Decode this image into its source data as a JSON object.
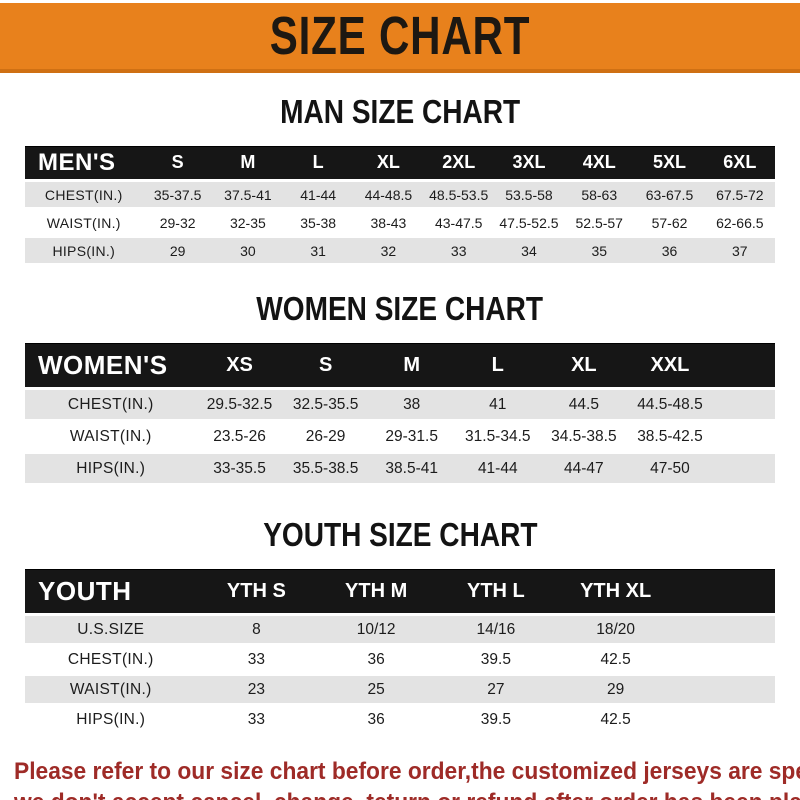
{
  "banner": {
    "title": "SIZE CHART"
  },
  "sections": [
    {
      "title": "MAN SIZE CHART",
      "header_label": "MEN'S",
      "columns": [
        "S",
        "M",
        "L",
        "XL",
        "2XL",
        "3XL",
        "4XL",
        "5XL",
        "6XL"
      ],
      "rows": [
        {
          "label": "CHEST(IN.)",
          "values": [
            "35-37.5",
            "37.5-41",
            "41-44",
            "44-48.5",
            "48.5-53.5",
            "53.5-58",
            "58-63",
            "63-67.5",
            "67.5-72"
          ]
        },
        {
          "label": "WAIST(IN.)",
          "values": [
            "29-32",
            "32-35",
            "35-38",
            "38-43",
            "43-47.5",
            "47.5-52.5",
            "52.5-57",
            "57-62",
            "62-66.5"
          ]
        },
        {
          "label": "HIPS(IN.)",
          "values": [
            "29",
            "30",
            "31",
            "32",
            "33",
            "34",
            "35",
            "36",
            "37"
          ]
        }
      ]
    },
    {
      "title": "WOMEN SIZE CHART",
      "header_label": "WOMEN'S",
      "columns": [
        "XS",
        "S",
        "M",
        "L",
        "XL",
        "XXL"
      ],
      "rows": [
        {
          "label": "CHEST(IN.)",
          "values": [
            "29.5-32.5",
            "32.5-35.5",
            "38",
            "41",
            "44.5",
            "44.5-48.5"
          ]
        },
        {
          "label": "WAIST(IN.)",
          "values": [
            "23.5-26",
            "26-29",
            "29-31.5",
            "31.5-34.5",
            "34.5-38.5",
            "38.5-42.5"
          ]
        },
        {
          "label": "HIPS(IN.)",
          "values": [
            "33-35.5",
            "35.5-38.5",
            "38.5-41",
            "41-44",
            "44-47",
            "47-50"
          ]
        }
      ]
    },
    {
      "title": "YOUTH SIZE CHART",
      "header_label": "YOUTH",
      "columns": [
        "YTH S",
        "YTH M",
        "YTH L",
        "YTH XL"
      ],
      "rows": [
        {
          "label": "U.S.SIZE",
          "values": [
            "8",
            "10/12",
            "14/16",
            "18/20"
          ]
        },
        {
          "label": "CHEST(IN.)",
          "values": [
            "33",
            "36",
            "39.5",
            "42.5"
          ]
        },
        {
          "label": "WAIST(IN.)",
          "values": [
            "23",
            "25",
            "27",
            "29"
          ]
        },
        {
          "label": "HIPS(IN.)",
          "values": [
            "33",
            "36",
            "39.5",
            "42.5"
          ]
        }
      ]
    }
  ],
  "footer_note": {
    "line1": "Please refer to our size chart before order,the customized jerseys are special products,",
    "line2": "we don't accept cancel, change, teturn or refund after order has been placed!"
  },
  "colors": {
    "banner_orange": "#e8811c",
    "header_band_black": "#161616",
    "row_gray": "#e3e3e3",
    "note_red": "#9e2b27"
  }
}
